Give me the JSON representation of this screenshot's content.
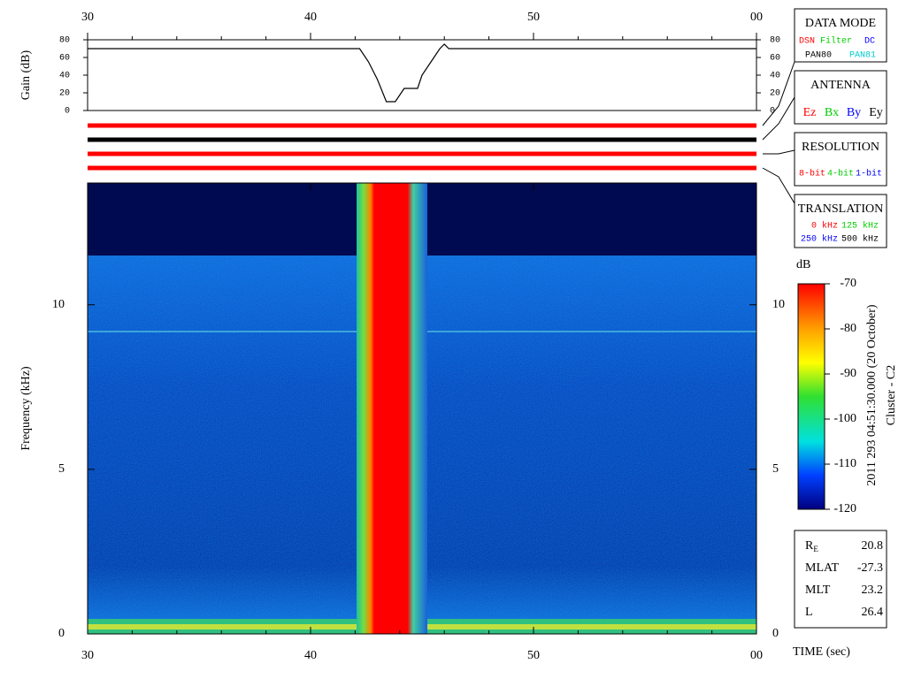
{
  "chart_data": [
    {
      "type": "line",
      "ylabel": "Gain (dB)",
      "x": [
        30,
        42.2,
        42.6,
        43.0,
        43.4,
        43.8,
        44.2,
        44.8,
        45.0,
        45.4,
        45.8,
        46.0,
        46.2,
        60
      ],
      "values": [
        70,
        70,
        55,
        35,
        10,
        10,
        25,
        25,
        40,
        55,
        70,
        75,
        70,
        70
      ],
      "color": "#000000",
      "xlim": [
        30,
        60
      ],
      "xticks": [
        30,
        40,
        50,
        {
          "value": 60,
          "label": "00"
        }
      ],
      "xminorticks": [
        32,
        34,
        36,
        38,
        42,
        44,
        46,
        48,
        52,
        54,
        56,
        58
      ],
      "ylim": [
        0,
        80
      ],
      "yticks": [
        0,
        20,
        40,
        60,
        80
      ]
    },
    {
      "type": "spectrogram",
      "ylabel": "Frequency (kHz)",
      "xlabel": "TIME (sec)",
      "xlim": [
        30,
        60
      ],
      "xticks": [
        30,
        40,
        50,
        {
          "value": 60,
          "label": "00"
        }
      ],
      "xminorticks": [
        32,
        34,
        36,
        38,
        42,
        44,
        46,
        48,
        52,
        54,
        56,
        58
      ],
      "ylim": [
        0,
        13.7
      ],
      "yticks": [
        0,
        5,
        10
      ],
      "colorbar": {
        "label": "dB",
        "lim": [
          -120,
          -70
        ],
        "ticks": [
          -120,
          -110,
          -100,
          -90,
          -80,
          -70
        ]
      }
    }
  ],
  "status_bars": [
    "#ff0000",
    "#000000",
    "#ff0000",
    "#ff0000"
  ],
  "panels": {
    "data_mode": {
      "title": "DATA MODE",
      "items": [
        {
          "text": "DSN",
          "color": "#ff0000"
        },
        {
          "text": "Filter",
          "color": "#00cc00"
        },
        {
          "text": "DC",
          "color": "#0000ff"
        },
        {
          "text": "PAN80",
          "color": "#000000"
        },
        {
          "text": "PAN81",
          "color": "#00cccc"
        }
      ]
    },
    "antenna": {
      "title": "ANTENNA",
      "items": [
        {
          "text": "Ez",
          "color": "#ff0000"
        },
        {
          "text": "Bx",
          "color": "#00cc00"
        },
        {
          "text": "By",
          "color": "#0000ff"
        },
        {
          "text": "Ey",
          "color": "#000000"
        }
      ]
    },
    "resolution": {
      "title": "RESOLUTION",
      "items": [
        {
          "text": "8-bit",
          "color": "#ff0000"
        },
        {
          "text": "4-bit",
          "color": "#00cc00"
        },
        {
          "text": "1-bit",
          "color": "#0000ff"
        }
      ]
    },
    "translation": {
      "title": "TRANSLATION",
      "items": [
        {
          "text": "0 kHz",
          "color": "#ff0000"
        },
        {
          "text": "125 kHz",
          "color": "#00cc00"
        },
        {
          "text": "250 kHz",
          "color": "#0000ff"
        },
        {
          "text": "500 kHz",
          "color": "#000000"
        }
      ]
    }
  },
  "timestamp": "2011 293 04:51:30.000 (20 October)",
  "spacecraft": "Cluster - C2",
  "orbit": [
    {
      "name": "R",
      "subscript": "E",
      "value": 20.8
    },
    {
      "name": "MLAT",
      "value": -27.3
    },
    {
      "name": "MLT",
      "value": 23.2
    },
    {
      "name": "L",
      "value": 26.4
    }
  ]
}
